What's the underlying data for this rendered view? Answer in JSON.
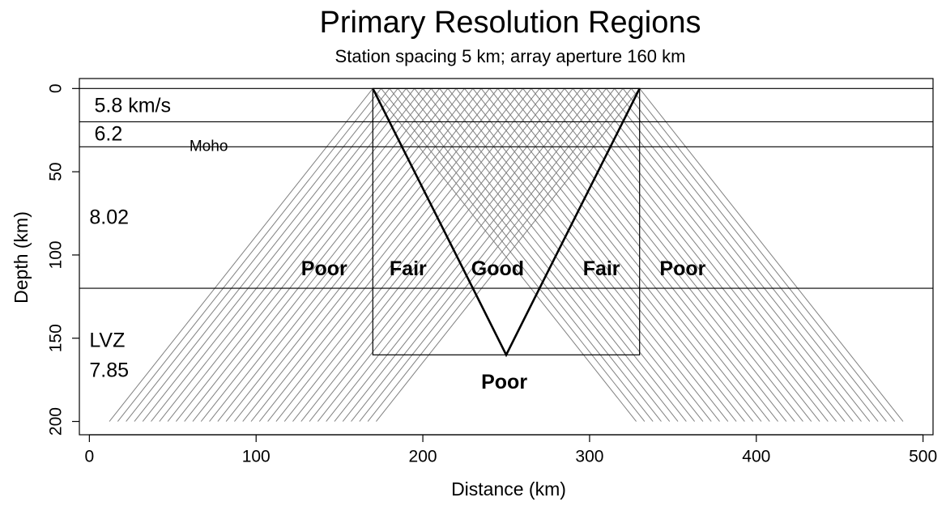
{
  "chart_data": {
    "type": "ray-diagram",
    "title": "Primary Resolution Regions",
    "subtitle": "Station spacing 5 km; array aperture 160 km",
    "x_label": "Distance (km)",
    "y_label": "Depth (km)",
    "xlim": [
      -6,
      506
    ],
    "xticks": [
      0,
      100,
      200,
      300,
      400,
      500
    ],
    "ylim": [
      -6,
      208
    ],
    "yticks": [
      0,
      50,
      100,
      150,
      200
    ],
    "y_inverted": true,
    "layer_boundaries": [
      0,
      20,
      35,
      120
    ],
    "rays": {
      "stations": [
        170,
        175,
        180,
        185,
        190,
        195,
        200,
        205,
        210,
        215,
        220,
        225,
        230,
        235,
        240,
        245,
        250,
        255,
        260,
        265,
        270,
        275,
        280,
        285,
        290,
        295,
        300,
        305,
        310,
        315,
        320,
        325,
        330
      ],
      "spread": 158,
      "depth": 200,
      "color": "#808080"
    },
    "resolution_box": {
      "x": [
        170,
        330
      ],
      "y": [
        0,
        160
      ]
    },
    "v_lines": {
      "x": [
        170,
        250,
        330
      ],
      "y": [
        0,
        160,
        0
      ]
    },
    "annotations": [
      {
        "text": "5.8 km/s",
        "x": 3,
        "y": 11,
        "weight": "normal",
        "size": "large"
      },
      {
        "text": "6.2",
        "x": 3,
        "y": 28,
        "weight": "normal",
        "size": "large"
      },
      {
        "text": "Moho",
        "x": 60,
        "y": 35,
        "weight": "normal",
        "size": "small"
      },
      {
        "text": "8.02",
        "x": 0,
        "y": 78,
        "weight": "normal",
        "size": "large"
      },
      {
        "text": "LVZ",
        "x": 0,
        "y": 152,
        "weight": "normal",
        "size": "large"
      },
      {
        "text": "7.85",
        "x": 0,
        "y": 170,
        "weight": "normal",
        "size": "large"
      },
      {
        "text": "Poor",
        "x": 127,
        "y": 109,
        "weight": "bold",
        "size": "large"
      },
      {
        "text": "Fair",
        "x": 180,
        "y": 109,
        "weight": "bold",
        "size": "large"
      },
      {
        "text": "Good",
        "x": 229,
        "y": 109,
        "weight": "bold",
        "size": "large"
      },
      {
        "text": "Fair",
        "x": 296,
        "y": 109,
        "weight": "bold",
        "size": "large"
      },
      {
        "text": "Poor",
        "x": 342,
        "y": 109,
        "weight": "bold",
        "size": "large"
      },
      {
        "text": "Poor",
        "x": 235,
        "y": 177,
        "weight": "bold",
        "size": "large"
      }
    ]
  }
}
